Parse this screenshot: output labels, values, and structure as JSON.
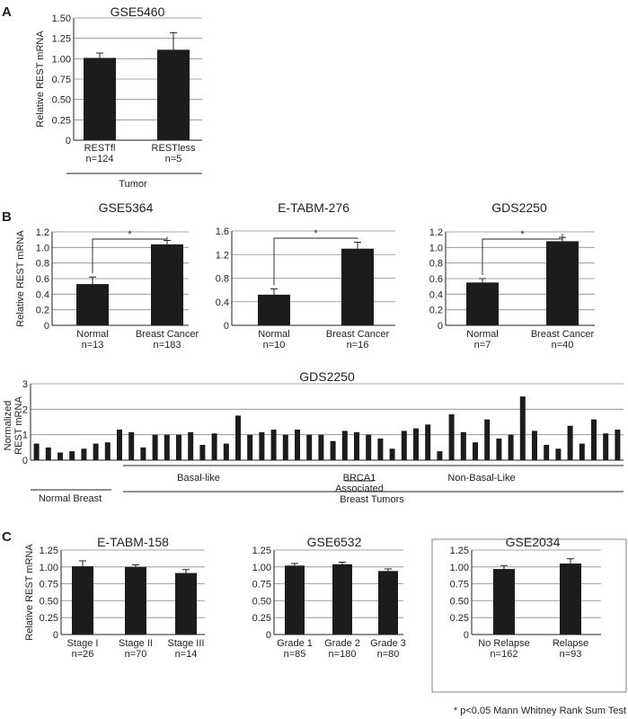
{
  "panels": {
    "A": "A",
    "B": "B",
    "C": "C"
  },
  "footnote": "* p<0.05 Mann Whitney Rank Sum Test",
  "chart_data": [
    {
      "id": "gse5460",
      "type": "bar",
      "title": "GSE5460",
      "ylabel": "Relative REST mRNA",
      "ylim": [
        0,
        1.5
      ],
      "yticks": [
        "0",
        "0.25",
        "0.50",
        "0.75",
        "1.00",
        "1.25",
        "1.50"
      ],
      "categories": [
        "RESTfl",
        "RESTless"
      ],
      "n": [
        "n=124",
        "n=5"
      ],
      "values": [
        1.01,
        1.11
      ],
      "errors": [
        0.06,
        0.21
      ],
      "group_label": "Tumor"
    },
    {
      "id": "gse5364",
      "type": "bar",
      "title": "GSE5364",
      "ylabel": "Relative REST mRNA",
      "ylim": [
        0,
        1.2
      ],
      "yticks": [
        "0",
        "0.2",
        "0.4",
        "0.6",
        "0.8",
        "1.0",
        "1.2"
      ],
      "categories": [
        "Normal",
        "Breast Cancer"
      ],
      "n": [
        "n=13",
        "n=183"
      ],
      "values": [
        0.53,
        1.04
      ],
      "errors": [
        0.09,
        0.05
      ],
      "significance": "*"
    },
    {
      "id": "etabm276",
      "type": "bar",
      "title": "E-TABM-276",
      "ylabel": "",
      "ylim": [
        0,
        1.6
      ],
      "yticks": [
        "0",
        "0.4",
        "0.8",
        "1.2",
        "1.6"
      ],
      "categories": [
        "Normal",
        "Breast Cancer"
      ],
      "n": [
        "n=10",
        "n=16"
      ],
      "values": [
        0.52,
        1.3
      ],
      "errors": [
        0.1,
        0.11
      ],
      "significance": "*"
    },
    {
      "id": "gds2250a",
      "type": "bar",
      "title": "GDS2250",
      "ylabel": "",
      "ylim": [
        0,
        1.2
      ],
      "yticks": [
        "0",
        "0.2",
        "0.4",
        "0.6",
        "0.8",
        "1.0",
        "1.2"
      ],
      "categories": [
        "Normal",
        "Breast Cancer"
      ],
      "n": [
        "n=7",
        "n=40"
      ],
      "values": [
        0.55,
        1.08
      ],
      "errors": [
        0.05,
        0.05
      ],
      "significance": "*"
    },
    {
      "id": "gds2250b",
      "type": "bar",
      "title": "GDS2250",
      "ylabel": "Normalized REST mRNA",
      "ylim": [
        0,
        3
      ],
      "yticks": [
        "0",
        "1",
        "2",
        "3"
      ],
      "values": [
        0.65,
        0.5,
        0.3,
        0.35,
        0.45,
        0.65,
        0.7,
        1.2,
        1.1,
        0.5,
        1.0,
        1.0,
        1.0,
        1.1,
        0.6,
        1.05,
        0.65,
        1.75,
        1.0,
        1.1,
        1.2,
        1.0,
        1.2,
        1.0,
        1.0,
        0.75,
        1.15,
        1.1,
        1.0,
        0.85,
        0.45,
        1.15,
        1.25,
        1.4,
        0.35,
        1.8,
        1.1,
        0.7,
        1.6,
        0.85,
        1.0,
        2.5,
        1.15,
        0.6,
        0.45,
        1.35,
        0.65,
        1.6,
        1.05,
        1.2
      ],
      "groups": {
        "normal": "Normal Breast",
        "tumors": "Breast Tumors",
        "basal": "Basal-like",
        "brca1": "BRCA1 Associated",
        "nonbasal": "Non-Basal-Like"
      }
    },
    {
      "id": "etabm158",
      "type": "bar",
      "title": "E-TABM-158",
      "ylabel": "Relative REST mRNA",
      "ylim": [
        0,
        1.25
      ],
      "yticks": [
        "0",
        "0.25",
        "0.50",
        "0.75",
        "1.00",
        "1.25"
      ],
      "categories": [
        "Stage I",
        "Stage II",
        "Stage III"
      ],
      "n": [
        "n=26",
        "n=70",
        "n=14"
      ],
      "values": [
        1.01,
        1.0,
        0.91
      ],
      "errors": [
        0.08,
        0.03,
        0.05
      ]
    },
    {
      "id": "gse6532",
      "type": "bar",
      "title": "GSE6532",
      "ylabel": "",
      "ylim": [
        0,
        1.25
      ],
      "yticks": [
        "0",
        "0.25",
        "0.50",
        "0.75",
        "1.00",
        "1.25"
      ],
      "categories": [
        "Grade 1",
        "Grade 2",
        "Grade 3"
      ],
      "n": [
        "n=85",
        "n=180",
        "n=80"
      ],
      "values": [
        1.02,
        1.04,
        0.94
      ],
      "errors": [
        0.03,
        0.03,
        0.03
      ]
    },
    {
      "id": "gse2034",
      "type": "bar",
      "title": "GSE2034",
      "ylabel": "",
      "ylim": [
        0,
        1.25
      ],
      "yticks": [
        "0",
        "0.25",
        "0.50",
        "0.75",
        "1.00",
        "1.25"
      ],
      "categories": [
        "No Relapse",
        "Relapse"
      ],
      "n": [
        "n=162",
        "n=93"
      ],
      "values": [
        0.97,
        1.05
      ],
      "errors": [
        0.05,
        0.07
      ]
    }
  ]
}
